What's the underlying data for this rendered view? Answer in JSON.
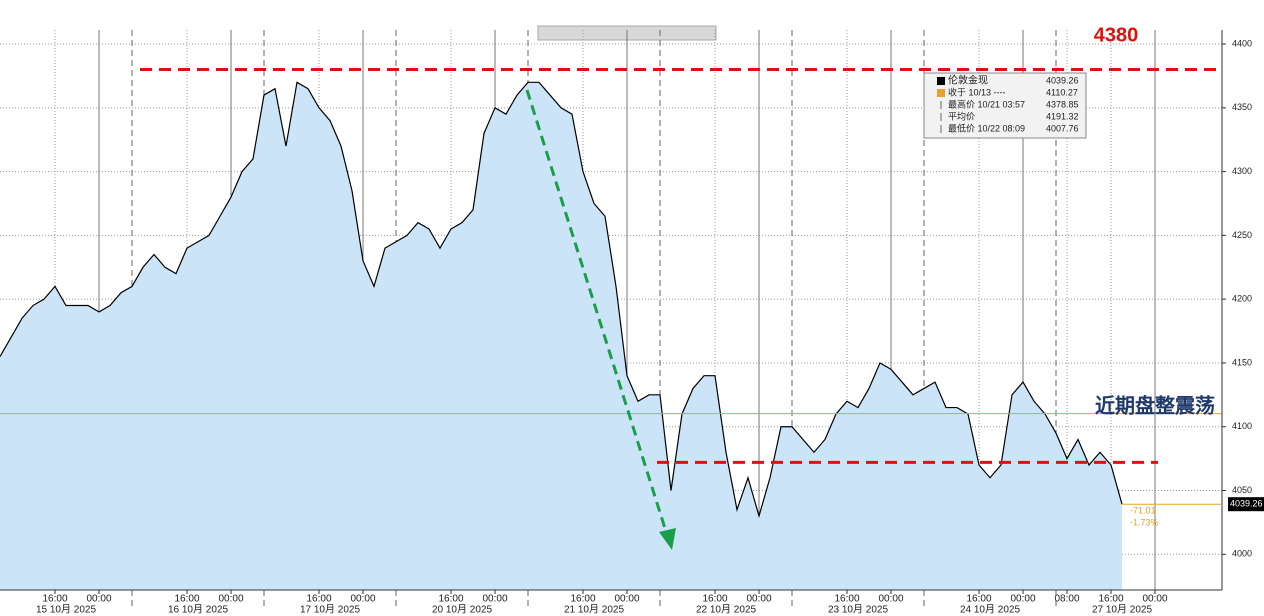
{
  "chart_data": {
    "type": "area",
    "series": [
      {
        "name": "伦敦金现",
        "color": "#000000",
        "fill": "#cce4f7",
        "values": [
          4155,
          4170,
          4185,
          4195,
          4200,
          4210,
          4195,
          4195,
          4195,
          4190,
          4195,
          4205,
          4210,
          4225,
          4235,
          4225,
          4220,
          4240,
          4245,
          4250,
          4265,
          4280,
          4300,
          4310,
          4360,
          4365,
          4320,
          4370,
          4365,
          4350,
          4340,
          4320,
          4285,
          4230,
          4210,
          4240,
          4245,
          4250,
          4260,
          4255,
          4240,
          4255,
          4260,
          4270,
          4330,
          4350,
          4345,
          4360,
          4370,
          4370,
          4360,
          4350,
          4345,
          4300,
          4275,
          4265,
          4210,
          4140,
          4120,
          4125,
          4125,
          4050,
          4110,
          4130,
          4140,
          4140,
          4080,
          4035,
          4060,
          4030,
          4060,
          4100,
          4100,
          4090,
          4080,
          4090,
          4110,
          4120,
          4115,
          4130,
          4150,
          4145,
          4135,
          4125,
          4130,
          4135,
          4115,
          4115,
          4110,
          4070,
          4060,
          4070,
          4125,
          4135,
          4120,
          4110,
          4095,
          4075,
          4090,
          4070,
          4080,
          4070,
          4039.26,
          null,
          null,
          null,
          null,
          null,
          null,
          null,
          null,
          null
        ]
      }
    ],
    "categories": [
      null,
      null,
      null,
      null,
      null,
      "16:00",
      null,
      null,
      null,
      "00:00",
      null,
      null,
      null,
      null,
      null,
      null,
      null,
      "16:00",
      null,
      null,
      null,
      "00:00",
      null,
      null,
      null,
      null,
      null,
      null,
      null,
      "16:00",
      null,
      null,
      null,
      "00:00",
      null,
      null,
      null,
      null,
      null,
      null,
      null,
      "16:00",
      null,
      null,
      null,
      "00:00",
      null,
      null,
      null,
      null,
      null,
      null,
      null,
      "16:00",
      null,
      null,
      null,
      "00:00",
      null,
      null,
      null,
      null,
      null,
      null,
      null,
      "16:00",
      null,
      null,
      null,
      "00:00",
      null,
      null,
      null,
      null,
      null,
      null,
      null,
      "16:00",
      null,
      null,
      null,
      "00:00",
      null,
      null,
      null,
      null,
      null,
      null,
      null,
      "16:00",
      null,
      null,
      null,
      "00:00",
      null,
      null,
      null,
      "08:00",
      null,
      null,
      null,
      "16:00",
      null,
      null,
      null,
      "00:00",
      null,
      null,
      null,
      null,
      null,
      null
    ],
    "dates": [
      null,
      null,
      null,
      null,
      null,
      null,
      "15 10月 2025",
      null,
      null,
      null,
      null,
      null,
      null,
      null,
      null,
      null,
      null,
      null,
      "16 10月 2025",
      null,
      null,
      null,
      null,
      null,
      null,
      null,
      null,
      null,
      null,
      null,
      "17 10月 2025",
      null,
      null,
      null,
      null,
      null,
      null,
      null,
      null,
      null,
      null,
      null,
      "20 10月 2025",
      null,
      null,
      null,
      null,
      null,
      null,
      null,
      null,
      null,
      null,
      null,
      "21 10月 2025",
      null,
      null,
      null,
      null,
      null,
      null,
      null,
      null,
      null,
      null,
      null,
      "22 10月 2025",
      null,
      null,
      null,
      null,
      null,
      null,
      null,
      null,
      null,
      null,
      null,
      "23 10月 2025",
      null,
      null,
      null,
      null,
      null,
      null,
      null,
      null,
      null,
      null,
      null,
      "24 10月 2025",
      null,
      null,
      null,
      null,
      null,
      null,
      null,
      null,
      null,
      null,
      null,
      "27 10月 2025",
      null,
      null,
      null,
      null,
      null,
      null,
      null,
      null,
      null
    ],
    "ylim": [
      3972,
      4411
    ],
    "yticks": [
      4000,
      4050,
      4100,
      4150,
      4200,
      4250,
      4300,
      4350,
      4400
    ],
    "grid": true,
    "reference_lines": [
      {
        "value": 4380,
        "label": "4380",
        "color": "#e01010"
      },
      {
        "value": 4072,
        "color": "#e01010"
      }
    ],
    "legend": [
      {
        "name": "收于 10/13 ----",
        "value": 4110.27,
        "color": "#e8a030"
      },
      {
        "name": "最高价 10/21 03:57",
        "value": 4378.85
      },
      {
        "name": "平均价",
        "value": 4191.32
      },
      {
        "name": "最低价 10/22 08:09",
        "value": 4007.76
      }
    ],
    "change": -71.01,
    "change_pct": {
      "value": -1.73,
      "label": "-1.73%"
    },
    "annotation": "近期盘整震荡"
  }
}
